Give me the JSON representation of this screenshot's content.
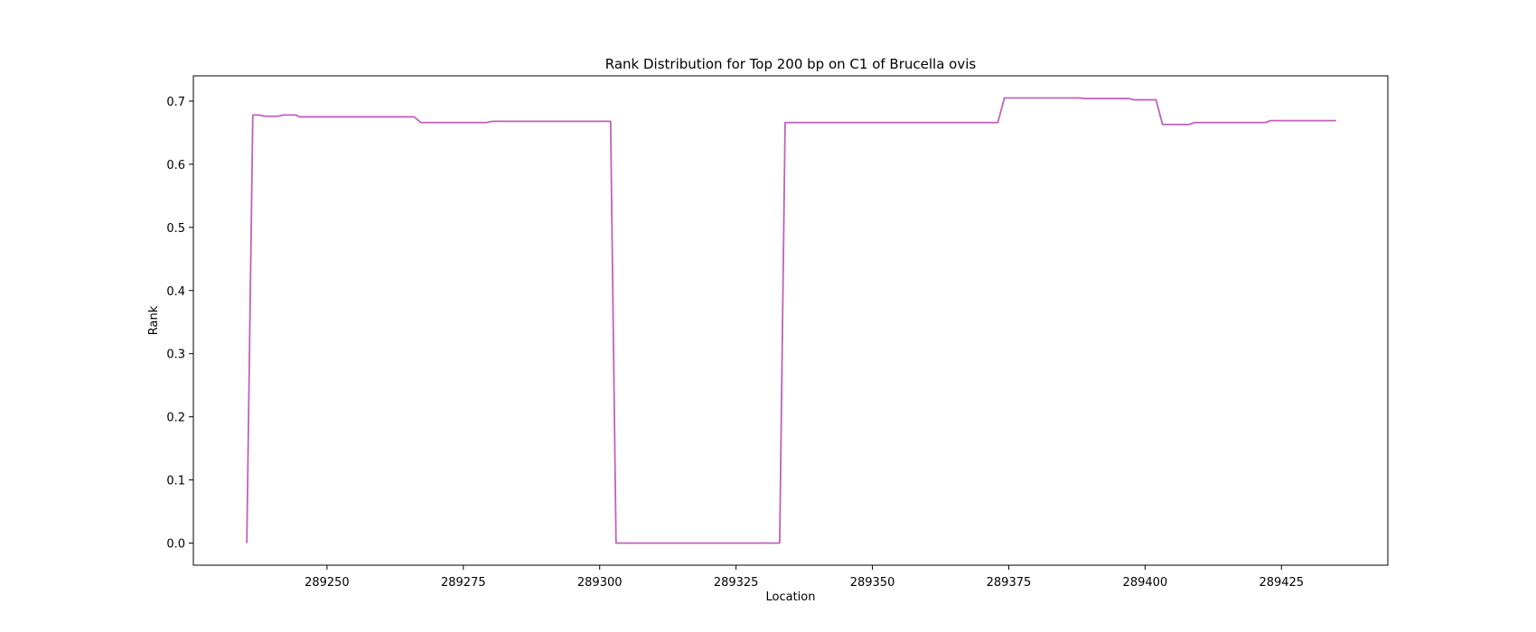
{
  "chart_data": {
    "type": "line",
    "title": "Rank Distribution for Top 200 bp on C1 of Brucella ovis",
    "xlabel": "Location",
    "ylabel": "Rank",
    "xlim": [
      289225.5,
      289444.5
    ],
    "ylim": [
      -0.035,
      0.74
    ],
    "x_ticks": [
      289250,
      289275,
      289300,
      289325,
      289350,
      289375,
      289400,
      289425
    ],
    "y_ticks": [
      0.0,
      0.1,
      0.2,
      0.3,
      0.4,
      0.5,
      0.6,
      0.7
    ],
    "x_tick_labels": [
      "289250",
      "289275",
      "289300",
      "289325",
      "289350",
      "289375",
      "289400",
      "289425"
    ],
    "y_tick_labels": [
      "0.0",
      "0.1",
      "0.2",
      "0.3",
      "0.4",
      "0.5",
      "0.6",
      "0.7"
    ],
    "grid": false,
    "series": [
      {
        "color": "#c061bd",
        "x": [
          289235.3,
          289236.4,
          289237.5,
          289238.6,
          289241.0,
          289242.0,
          289244.2,
          289245.0,
          289266.0,
          289267.2,
          289279.2,
          289280.3,
          289302.0,
          289303.0,
          289333.0,
          289334.0,
          289373.0,
          289374.2,
          289388.0,
          289389.0,
          289397.0,
          289398.0,
          289402.0,
          289403.2,
          289408.0,
          289409.1,
          289422.0,
          289423.0,
          289435.0
        ],
        "y": [
          0.0,
          0.678,
          0.678,
          0.676,
          0.676,
          0.678,
          0.678,
          0.675,
          0.675,
          0.666,
          0.666,
          0.668,
          0.668,
          0.0,
          0.0,
          0.666,
          0.666,
          0.705,
          0.705,
          0.704,
          0.704,
          0.702,
          0.702,
          0.663,
          0.663,
          0.666,
          0.666,
          0.669,
          0.669
        ]
      }
    ]
  }
}
